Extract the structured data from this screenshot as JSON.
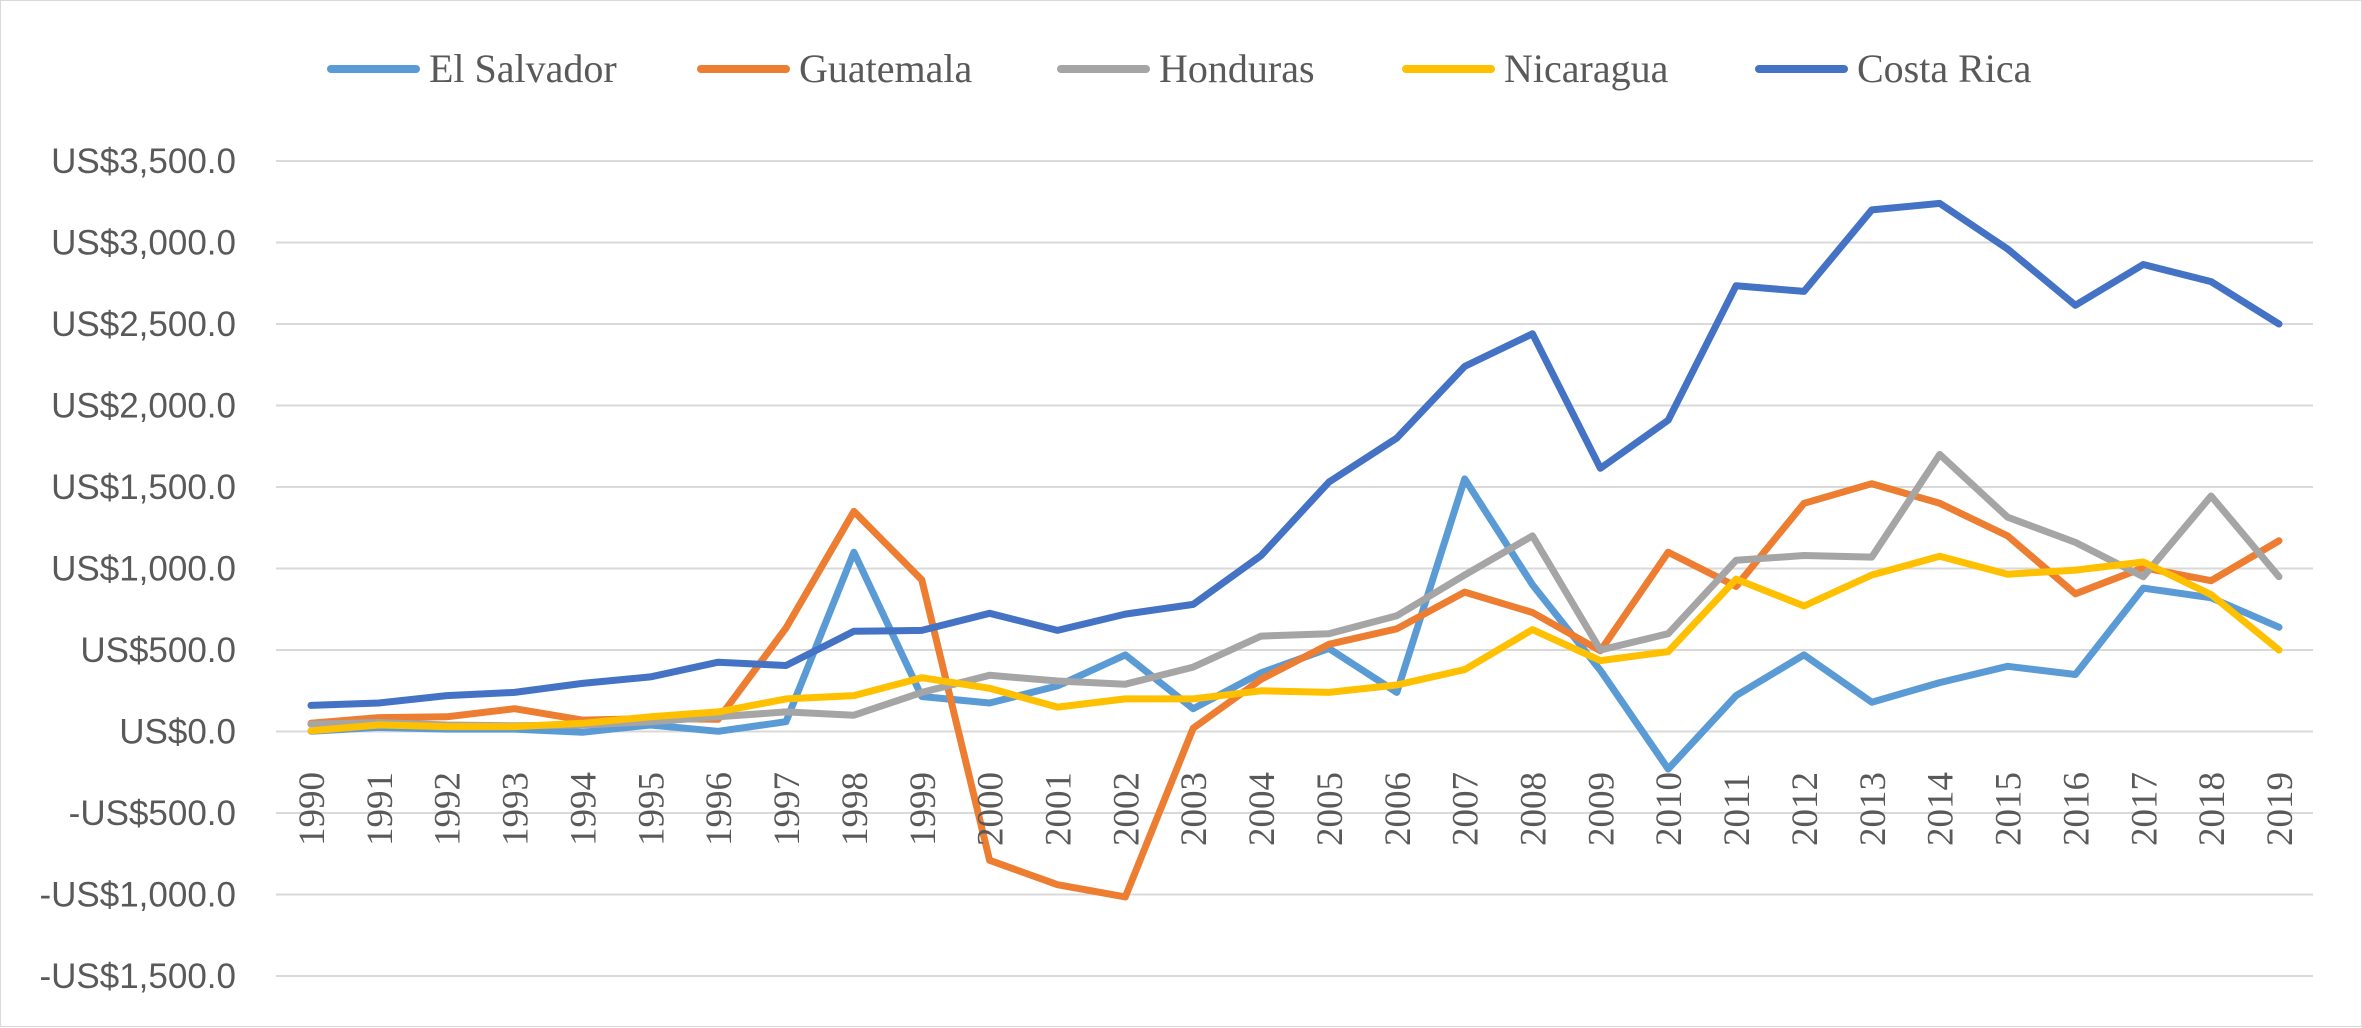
{
  "chart_data": {
    "type": "line",
    "title": "",
    "xlabel": "",
    "ylabel": "",
    "ylim": [
      -1500,
      3500
    ],
    "y_ticks": [
      3500,
      3000,
      2500,
      2000,
      1500,
      1000,
      500,
      0,
      -500,
      -1000,
      -1500
    ],
    "y_tick_labels": [
      "US$3,500.0",
      "US$3,000.0",
      "US$2,500.0",
      "US$2,000.0",
      "US$1,500.0",
      "US$1,000.0",
      "US$500.0",
      "US$0.0",
      "-US$500.0",
      "-US$1,000.0",
      "-US$1,500.0"
    ],
    "grid": "horizontal",
    "legend_position": "top",
    "categories": [
      "1990",
      "1991",
      "1992",
      "1993",
      "1994",
      "1995",
      "1996",
      "1997",
      "1998",
      "1999",
      "2000",
      "2001",
      "2002",
      "2003",
      "2004",
      "2005",
      "2006",
      "2007",
      "2008",
      "2009",
      "2010",
      "2011",
      "2012",
      "2013",
      "2014",
      "2015",
      "2016",
      "2017",
      "2018",
      "2019"
    ],
    "series": [
      {
        "name": "El Salvador",
        "color": "#5B9BD5",
        "values": [
          2,
          25,
          15,
          15,
          -5,
          40,
          1,
          60,
          1100,
          215,
          175,
          280,
          470,
          140,
          360,
          510,
          240,
          1550,
          900,
          375,
          -230,
          220,
          470,
          180,
          300,
          400,
          350,
          880,
          820,
          640
        ]
      },
      {
        "name": "Guatemala",
        "color": "#ED7D31",
        "values": [
          50,
          85,
          90,
          140,
          70,
          80,
          75,
          635,
          1350,
          930,
          -790,
          -940,
          -1015,
          20,
          320,
          535,
          630,
          855,
          730,
          495,
          1100,
          890,
          1400,
          1520,
          1400,
          1200,
          845,
          1005,
          925,
          1170
        ]
      },
      {
        "name": "Honduras",
        "color": "#A5A5A5",
        "values": [
          45,
          55,
          40,
          35,
          40,
          60,
          90,
          120,
          100,
          240,
          345,
          310,
          290,
          395,
          585,
          600,
          710,
          960,
          1200,
          500,
          600,
          1050,
          1080,
          1070,
          1700,
          1315,
          1160,
          950,
          1445,
          950
        ]
      },
      {
        "name": "Nicaragua",
        "color": "#FFC000",
        "values": [
          5,
          40,
          30,
          30,
          50,
          90,
          120,
          200,
          220,
          330,
          265,
          150,
          200,
          200,
          250,
          240,
          285,
          380,
          625,
          435,
          490,
          935,
          770,
          960,
          1075,
          965,
          990,
          1040,
          840,
          500
        ]
      },
      {
        "name": "Costa Rica",
        "color": "#4472C4",
        "values": [
          160,
          175,
          220,
          240,
          295,
          335,
          425,
          405,
          615,
          620,
          725,
          620,
          720,
          780,
          1080,
          1530,
          1800,
          2240,
          2440,
          1615,
          1910,
          2735,
          2700,
          3200,
          3240,
          2960,
          2615,
          2865,
          2760,
          2500
        ]
      }
    ]
  }
}
